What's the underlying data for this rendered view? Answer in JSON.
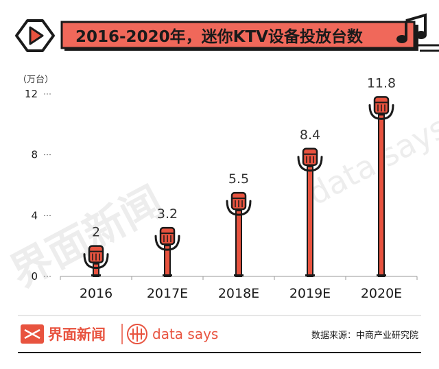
{
  "header": {
    "title": "2016-2020年，迷你KTV设备投放台数"
  },
  "footer": {
    "brand": "界面新闻",
    "sub_brand": "data says",
    "source": "数据来源：中商产业研究院"
  },
  "watermark": {
    "brand": "界面新闻",
    "sub_brand": "data says"
  },
  "colors": {
    "accent": "#e8533f",
    "ink": "#1a1a1a"
  },
  "icons": [
    "play-icon",
    "music-note-icon",
    "microphone-icon",
    "data-says-logo-icon"
  ],
  "chart_data": {
    "type": "bar",
    "title": "2016-2020年，迷你KTV设备投放台数",
    "unit": "（万台）",
    "xlabel": "",
    "ylabel": "",
    "categories": [
      "2016",
      "2017E",
      "2018E",
      "2019E",
      "2020E"
    ],
    "values": [
      2,
      3.2,
      5.5,
      8.4,
      11.8
    ],
    "value_labels": [
      "2",
      "3.2",
      "5.5",
      "8.4",
      "11.8"
    ],
    "ylim": [
      0,
      12
    ],
    "yticks": [
      0,
      4,
      8,
      12
    ],
    "grid": false,
    "legend": "none"
  }
}
